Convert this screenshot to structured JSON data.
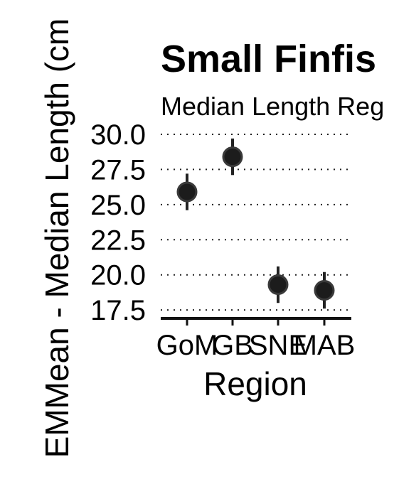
{
  "chart_data": {
    "type": "scatter",
    "title": "Small Finfis",
    "subtitle": "Median Length Reg",
    "xlabel": "Region",
    "ylabel": "EMMean - Median Length (cm",
    "categories": [
      "GoM",
      "GB",
      "SNE",
      "MAB"
    ],
    "series": [
      {
        "values": [
          25.9,
          28.4,
          19.3,
          18.9
        ],
        "lower": [
          24.6,
          27.1,
          18.0,
          17.6
        ],
        "upper": [
          27.2,
          29.7,
          20.6,
          20.2
        ]
      }
    ],
    "yticks": [
      17.5,
      20.0,
      22.5,
      25.0,
      27.5,
      30.0
    ],
    "ytick_labels": [
      "17.5",
      "20.0",
      "22.5",
      "25.0",
      "27.5",
      "30.0"
    ],
    "ylim": [
      16.9,
      30.2
    ],
    "grid": "horizontal dotted",
    "legend": "none",
    "colors": {
      "point": "#1c1c1c",
      "axis": "#111111"
    }
  }
}
